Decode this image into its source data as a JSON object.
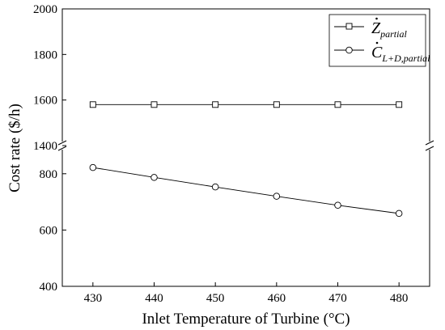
{
  "chart_data": {
    "type": "line",
    "title": "",
    "xlabel": "Inlet Temperature of Turbine (°C)",
    "ylabel": "Cost rate ($/h)",
    "x": [
      430,
      440,
      450,
      460,
      470,
      480
    ],
    "xlim": [
      425,
      485
    ],
    "ylim": [
      400,
      2000
    ],
    "axis_break": {
      "lower_segment": [
        400,
        900
      ],
      "upper_segment": [
        1400,
        2000
      ]
    },
    "x_ticks": [
      "430",
      "440",
      "450",
      "460",
      "470",
      "480"
    ],
    "y_ticks": [
      "400",
      "600",
      "800",
      "1400",
      "1600",
      "1800",
      "2000"
    ],
    "grid": false,
    "legend_position": "top-right",
    "series": [
      {
        "name_main": "Z",
        "name_sub": "partial",
        "marker": "square",
        "color": "#000000",
        "values": [
          1580,
          1580,
          1580,
          1580,
          1580,
          1580
        ]
      },
      {
        "name_main": "C",
        "name_sub": "L+D,partial",
        "marker": "circle",
        "color": "#000000",
        "values": [
          822,
          787,
          753,
          720,
          688,
          659
        ]
      }
    ]
  }
}
